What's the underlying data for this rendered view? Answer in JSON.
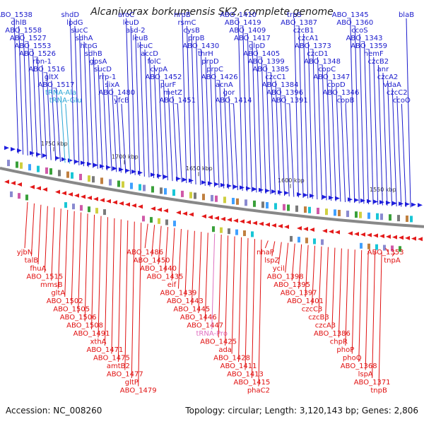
{
  "map": {
    "title": "Alcanivorax borkumensis SK2, complete genome",
    "accession": "Accession: NC_008260",
    "summary": "Topology: circular; Length: 3,120,143 bp; Genes: 2,806",
    "ticks": [
      "1750 kbp",
      "1700 kbp",
      "1650 kbp",
      "1600 kbp",
      "1550 kbp"
    ],
    "top_labels": [
      "ABO_1538",
      "dhlB",
      "ABO_1558",
      "ABO_1527",
      "ABO_1553",
      "ABO_1526",
      "rbn-1",
      "ABO_1516",
      "gltX",
      "ABO_1517",
      "tRNA-Ala",
      "tRNA-Glu",
      "shdD",
      "lpdG",
      "sucC",
      "sdhA",
      "htpG",
      "sdhB",
      "gpsA",
      "sucD",
      "rrp-1",
      "sixA",
      "ABO_1480",
      "yfcB",
      "aroC",
      "leuD",
      "asd-2",
      "leuB",
      "leuC",
      "accD",
      "folC",
      "cvpA",
      "ABO_1452",
      "purF",
      "metZ",
      "ABO_1451",
      "nrpB",
      "rsmC",
      "cysB",
      "prpB",
      "ABO_1430",
      "thrH",
      "prpD",
      "prpC",
      "ABO_1426",
      "acnA",
      "gor",
      "ABO_1414",
      "ABO_1410",
      "ABO_1419",
      "ABO_1409",
      "ABO_1417",
      "glpD",
      "ABO_1405",
      "ABO_1399",
      "ABO_1385",
      "czcC1",
      "ABO_1384",
      "ABO_1396",
      "ABO_1391",
      "trpS",
      "ABO_1387",
      "czcB1",
      "czcA1",
      "ABO_1373",
      "czcD1",
      "ABO_1348",
      "copC",
      "ABO_1347",
      "copD",
      "ABO_1346",
      "copB",
      "ABO_1345",
      "ABO_1360",
      "ccoS",
      "ABO_1343",
      "ABO_1359",
      "hemF",
      "czcB2",
      "anr",
      "czcA2",
      "vdaA",
      "czcC2",
      "ccoO",
      "blaB"
    ],
    "bottom_labels": [
      "yjbN",
      "talB",
      "fhuA",
      "ABO_1515",
      "mmsB",
      "gltA",
      "ABO_1502",
      "ABO_1505",
      "ABO_1506",
      "ABO_1508",
      "ABO_1491",
      "xthA",
      "ABO_1471",
      "ABO_1475",
      "amtB2",
      "ABO_1477",
      "gltP",
      "ABO_1479",
      "ABO_1486",
      "ABO_1450",
      "ABO_1440",
      "ABO_1435",
      "eif",
      "ABO_1439",
      "ABO_1443",
      "ABO_1445",
      "ABO_1446",
      "ABO_1447",
      "tRNA-Pro",
      "ABO_1425",
      "ada",
      "ABO_1428",
      "ABO_1411",
      "ABO_1413",
      "ABO_1415",
      "phaC2",
      "nhaP",
      "lspZ",
      "ycil",
      "ABO_1398",
      "ABO_1395",
      "ABO_1397",
      "ABO_1401",
      "czcC3",
      "czcB3",
      "czcA3",
      "ABO_1386",
      "chpR",
      "phoP",
      "phoQ",
      "ABO_1368",
      "lspA",
      "ABO_1371",
      "tnpB",
      "ABO_1353",
      "tnpA"
    ],
    "colors": {
      "top_gene": "#1a1acc",
      "bottom_gene": "#e01010",
      "rna_gene": "#2aa6d6",
      "trna_pro": "#e070c0",
      "backbone": "#888888"
    }
  }
}
